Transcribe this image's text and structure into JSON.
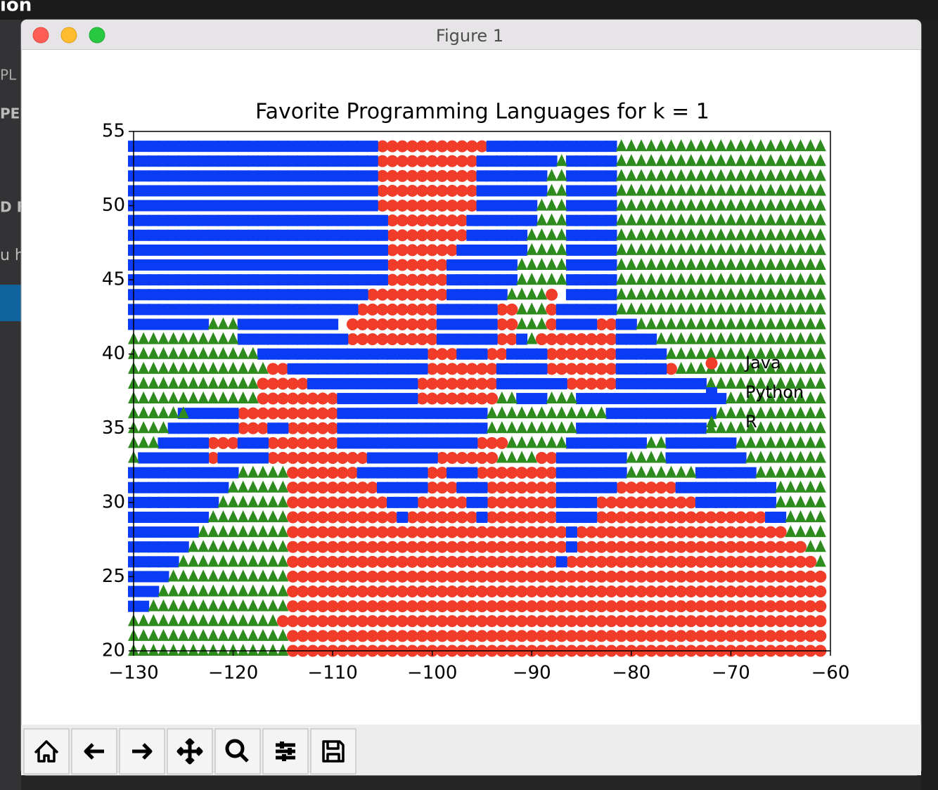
{
  "window_title": "Figure 1",
  "background_text": [
    "ion",
    "PL",
    "PEN",
    "D FC",
    "u h"
  ],
  "chart_data": {
    "type": "scatter",
    "title": "Favorite Programming Languages for k = 1",
    "xlim": [
      -130,
      -60
    ],
    "ylim": [
      20,
      55
    ],
    "xticks": [
      {
        "value": -130,
        "label": "−130"
      },
      {
        "value": -120,
        "label": "−120"
      },
      {
        "value": -110,
        "label": "−110"
      },
      {
        "value": -100,
        "label": "−100"
      },
      {
        "value": -90,
        "label": "−90"
      },
      {
        "value": -80,
        "label": "−80"
      },
      {
        "value": -70,
        "label": "−70"
      },
      {
        "value": -60,
        "label": "−60"
      }
    ],
    "yticks": [
      20,
      25,
      30,
      35,
      40,
      45,
      50,
      55
    ],
    "series": [
      {
        "name": "Java",
        "color": "#f03c28",
        "marker": "o",
        "runs": [
          [
            54,
            -105,
            -95
          ],
          [
            53,
            -105,
            -96
          ],
          [
            52,
            -105,
            -96
          ],
          [
            51,
            -105,
            -96
          ],
          [
            50,
            -105,
            -96
          ],
          [
            49,
            -104,
            -97
          ],
          [
            48,
            -104,
            -97
          ],
          [
            47,
            -104,
            -98
          ],
          [
            46,
            -104,
            -99
          ],
          [
            45,
            -104,
            -99
          ],
          [
            44,
            -106,
            -99
          ],
          [
            44,
            -88,
            -88
          ],
          [
            43,
            -107,
            -100
          ],
          [
            43,
            -93,
            -92
          ],
          [
            43,
            -88,
            -88
          ],
          [
            42,
            -108,
            -100
          ],
          [
            42,
            -93,
            -92
          ],
          [
            42,
            -88,
            -88
          ],
          [
            42,
            -83,
            -82
          ],
          [
            41,
            -108,
            -100
          ],
          [
            41,
            -93,
            -92
          ],
          [
            41,
            -89,
            -82
          ],
          [
            40,
            -100,
            -98
          ],
          [
            40,
            -94,
            -93
          ],
          [
            40,
            -88,
            -82
          ],
          [
            39,
            -116,
            -115
          ],
          [
            39,
            -100,
            -94
          ],
          [
            39,
            -88,
            -82
          ],
          [
            39,
            -76,
            -76
          ],
          [
            38,
            -117,
            -113
          ],
          [
            38,
            -101,
            -94
          ],
          [
            38,
            -86,
            -82
          ],
          [
            37,
            -117,
            -110
          ],
          [
            37,
            -101,
            -94
          ],
          [
            36,
            -119,
            -110
          ],
          [
            35,
            -119,
            -117
          ],
          [
            35,
            -114,
            -110
          ],
          [
            34,
            -122,
            -120
          ],
          [
            34,
            -116,
            -110
          ],
          [
            34,
            -95,
            -93
          ],
          [
            33,
            -122,
            -122
          ],
          [
            33,
            -116,
            -107
          ],
          [
            33,
            -99,
            -94
          ],
          [
            33,
            -89,
            -88
          ],
          [
            32,
            -114,
            -108
          ],
          [
            32,
            -100,
            -99
          ],
          [
            32,
            -95,
            -88
          ],
          [
            31,
            -114,
            -106
          ],
          [
            31,
            -100,
            -98
          ],
          [
            31,
            -94,
            -88
          ],
          [
            31,
            -81,
            -76
          ],
          [
            30,
            -114,
            -105
          ],
          [
            30,
            -101,
            -97
          ],
          [
            30,
            -94,
            -88
          ],
          [
            30,
            -83,
            -74
          ],
          [
            29,
            -114,
            -104
          ],
          [
            29,
            -102,
            -96
          ],
          [
            29,
            -94,
            -88
          ],
          [
            29,
            -83,
            -67
          ],
          [
            28,
            -114,
            -87
          ],
          [
            28,
            -85,
            -65
          ],
          [
            27,
            -114,
            -87
          ],
          [
            27,
            -85,
            -63
          ],
          [
            26,
            -114,
            -88
          ],
          [
            26,
            -86,
            -62
          ],
          [
            25,
            -114,
            -61
          ],
          [
            24,
            -114,
            -61
          ],
          [
            23,
            -114,
            -61
          ],
          [
            22,
            -115,
            -61
          ],
          [
            21,
            -114,
            -61
          ],
          [
            20,
            -114,
            -61
          ]
        ]
      },
      {
        "name": "Python",
        "color": "#0a3cf5",
        "marker": "s",
        "runs": [
          [
            54,
            -130,
            -106
          ],
          [
            54,
            -94,
            -82
          ],
          [
            53,
            -130,
            -106
          ],
          [
            53,
            -95,
            -88
          ],
          [
            53,
            -86,
            -82
          ],
          [
            52,
            -130,
            -106
          ],
          [
            52,
            -95,
            -89
          ],
          [
            52,
            -86,
            -82
          ],
          [
            51,
            -130,
            -106
          ],
          [
            51,
            -95,
            -89
          ],
          [
            51,
            -86,
            -82
          ],
          [
            50,
            -130,
            -106
          ],
          [
            50,
            -95,
            -90
          ],
          [
            50,
            -86,
            -82
          ],
          [
            49,
            -130,
            -105
          ],
          [
            49,
            -96,
            -90
          ],
          [
            49,
            -86,
            -82
          ],
          [
            48,
            -130,
            -105
          ],
          [
            48,
            -96,
            -91
          ],
          [
            48,
            -86,
            -82
          ],
          [
            47,
            -130,
            -105
          ],
          [
            47,
            -97,
            -91
          ],
          [
            47,
            -86,
            -82
          ],
          [
            46,
            -130,
            -105
          ],
          [
            46,
            -98,
            -92
          ],
          [
            46,
            -86,
            -82
          ],
          [
            45,
            -130,
            -105
          ],
          [
            45,
            -98,
            -92
          ],
          [
            45,
            -86,
            -82
          ],
          [
            44,
            -130,
            -107
          ],
          [
            44,
            -98,
            -93
          ],
          [
            44,
            -86,
            -82
          ],
          [
            43,
            -130,
            -108
          ],
          [
            43,
            -99,
            -94
          ],
          [
            43,
            -87,
            -82
          ],
          [
            42,
            -130,
            -123
          ],
          [
            42,
            -119,
            -110
          ],
          [
            42,
            -99,
            -94
          ],
          [
            42,
            -87,
            -84
          ],
          [
            42,
            -81,
            -80
          ],
          [
            41,
            -119,
            -109
          ],
          [
            41,
            -99,
            -94
          ],
          [
            41,
            -91,
            -91
          ],
          [
            41,
            -81,
            -78
          ],
          [
            40,
            -117,
            -101
          ],
          [
            40,
            -97,
            -95
          ],
          [
            40,
            -92,
            -89
          ],
          [
            40,
            -81,
            -77
          ],
          [
            39,
            -114,
            -101
          ],
          [
            39,
            -93,
            -89
          ],
          [
            39,
            -81,
            -77
          ],
          [
            38,
            -112,
            -102
          ],
          [
            38,
            -93,
            -87
          ],
          [
            38,
            -81,
            -73
          ],
          [
            37,
            -109,
            -102
          ],
          [
            37,
            -91,
            -89
          ],
          [
            37,
            -85,
            -71
          ],
          [
            36,
            -125,
            -120
          ],
          [
            36,
            -109,
            -95
          ],
          [
            36,
            -82,
            -72
          ],
          [
            35,
            -126,
            -120
          ],
          [
            35,
            -116,
            -115
          ],
          [
            35,
            -109,
            -95
          ],
          [
            35,
            -85,
            -73
          ],
          [
            34,
            -127,
            -123
          ],
          [
            34,
            -119,
            -117
          ],
          [
            34,
            -109,
            -96
          ],
          [
            34,
            -86,
            -79
          ],
          [
            34,
            -76,
            -70
          ],
          [
            33,
            -129,
            -123
          ],
          [
            33,
            -121,
            -117
          ],
          [
            33,
            -106,
            -100
          ],
          [
            33,
            -87,
            -81
          ],
          [
            33,
            -76,
            -69
          ],
          [
            32,
            -130,
            -120
          ],
          [
            32,
            -107,
            -101
          ],
          [
            32,
            -98,
            -96
          ],
          [
            32,
            -87,
            -81
          ],
          [
            32,
            -73,
            -68
          ],
          [
            31,
            -130,
            -121
          ],
          [
            31,
            -105,
            -101
          ],
          [
            31,
            -97,
            -95
          ],
          [
            31,
            -87,
            -82
          ],
          [
            31,
            -75,
            -66
          ],
          [
            30,
            -130,
            -122
          ],
          [
            30,
            -104,
            -102
          ],
          [
            30,
            -96,
            -95
          ],
          [
            30,
            -87,
            -84
          ],
          [
            30,
            -73,
            -66
          ],
          [
            29,
            -130,
            -123
          ],
          [
            29,
            -103,
            -103
          ],
          [
            29,
            -95,
            -95
          ],
          [
            29,
            -87,
            -84
          ],
          [
            29,
            -66,
            -65
          ],
          [
            28,
            -130,
            -124
          ],
          [
            28,
            -86,
            -86
          ],
          [
            27,
            -130,
            -125
          ],
          [
            27,
            -86,
            -86
          ],
          [
            26,
            -130,
            -126
          ],
          [
            26,
            -87,
            -87
          ],
          [
            25,
            -130,
            -127
          ],
          [
            24,
            -130,
            -128
          ],
          [
            23,
            -130,
            -129
          ]
        ]
      },
      {
        "name": "R",
        "color": "#2e8b1e",
        "marker": "^",
        "runs": [
          [
            54,
            -81,
            -61
          ],
          [
            53,
            -87,
            -87
          ],
          [
            53,
            -81,
            -61
          ],
          [
            52,
            -88,
            -87
          ],
          [
            52,
            -81,
            -61
          ],
          [
            51,
            -88,
            -87
          ],
          [
            51,
            -81,
            -61
          ],
          [
            50,
            -89,
            -87
          ],
          [
            50,
            -81,
            -61
          ],
          [
            49,
            -89,
            -87
          ],
          [
            49,
            -81,
            -61
          ],
          [
            48,
            -90,
            -87
          ],
          [
            48,
            -81,
            -61
          ],
          [
            47,
            -90,
            -87
          ],
          [
            47,
            -81,
            -61
          ],
          [
            46,
            -91,
            -87
          ],
          [
            46,
            -81,
            -61
          ],
          [
            45,
            -91,
            -87
          ],
          [
            45,
            -81,
            -61
          ],
          [
            44,
            -92,
            -89
          ],
          [
            44,
            -81,
            -61
          ],
          [
            43,
            -91,
            -89
          ],
          [
            43,
            -81,
            -61
          ],
          [
            42,
            -122,
            -120
          ],
          [
            42,
            -91,
            -89
          ],
          [
            42,
            -79,
            -61
          ],
          [
            41,
            -130,
            -120
          ],
          [
            41,
            -90,
            -90
          ],
          [
            41,
            -77,
            -61
          ],
          [
            40,
            -130,
            -118
          ],
          [
            40,
            -76,
            -61
          ],
          [
            39,
            -130,
            -117
          ],
          [
            39,
            -75,
            -61
          ],
          [
            38,
            -130,
            -118
          ],
          [
            38,
            -72,
            -61
          ],
          [
            37,
            -130,
            -118
          ],
          [
            37,
            -93,
            -92
          ],
          [
            37,
            -88,
            -86
          ],
          [
            37,
            -70,
            -61
          ],
          [
            36,
            -130,
            -125
          ],
          [
            36,
            -94,
            -83
          ],
          [
            36,
            -71,
            -61
          ],
          [
            35,
            -130,
            -127
          ],
          [
            35,
            -94,
            -86
          ],
          [
            35,
            -72,
            -61
          ],
          [
            34,
            -130,
            -128
          ],
          [
            34,
            -92,
            -87
          ],
          [
            34,
            -78,
            -77
          ],
          [
            34,
            -69,
            -61
          ],
          [
            33,
            -130,
            -130
          ],
          [
            33,
            -93,
            -90
          ],
          [
            33,
            -80,
            -77
          ],
          [
            33,
            -68,
            -61
          ],
          [
            32,
            -119,
            -115
          ],
          [
            32,
            -80,
            -74
          ],
          [
            32,
            -67,
            -61
          ],
          [
            31,
            -120,
            -115
          ],
          [
            31,
            -65,
            -61
          ],
          [
            30,
            -121,
            -115
          ],
          [
            30,
            -65,
            -61
          ],
          [
            29,
            -122,
            -115
          ],
          [
            29,
            -64,
            -61
          ],
          [
            28,
            -123,
            -115
          ],
          [
            28,
            -64,
            -61
          ],
          [
            27,
            -124,
            -115
          ],
          [
            27,
            -62,
            -61
          ],
          [
            26,
            -125,
            -115
          ],
          [
            26,
            -61,
            -61
          ],
          [
            25,
            -126,
            -115
          ],
          [
            24,
            -127,
            -115
          ],
          [
            23,
            -128,
            -115
          ],
          [
            22,
            -130,
            -116
          ],
          [
            21,
            -130,
            -115
          ],
          [
            20,
            -130,
            -115
          ]
        ]
      }
    ]
  }
}
